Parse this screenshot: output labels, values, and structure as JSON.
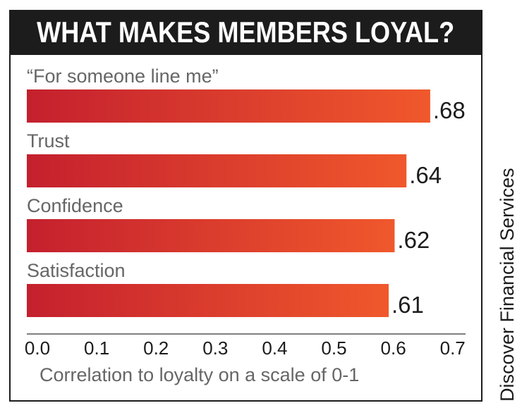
{
  "chart_data": {
    "type": "bar",
    "orientation": "horizontal",
    "title": "WHAT MAKES MEMBERS LOYAL?",
    "categories": [
      "“For someone line me”",
      "Trust",
      "Confidence",
      "Satisfaction"
    ],
    "values": [
      0.68,
      0.64,
      0.62,
      0.61
    ],
    "value_labels": [
      ".68",
      ".64",
      ".62",
      ".61"
    ],
    "ticks": [
      "0.0",
      "0.1",
      "0.2",
      "0.3",
      "0.4",
      "0.5",
      "0.6",
      "0.7"
    ],
    "tick_values": [
      0,
      0.1,
      0.2,
      0.3,
      0.4,
      0.5,
      0.6,
      0.7
    ],
    "xlabel": "Correlation to loyalty on a scale of 0-1",
    "xlim": [
      0,
      0.74
    ],
    "grid": false,
    "legend": "none",
    "colors": {
      "bar_start": "#c4202e",
      "bar_end": "#f0582c",
      "title_bg": "#1c1c1c",
      "text": "#1c1c1c",
      "axis_text": "#666666"
    }
  },
  "source": "Discover Financial Services"
}
